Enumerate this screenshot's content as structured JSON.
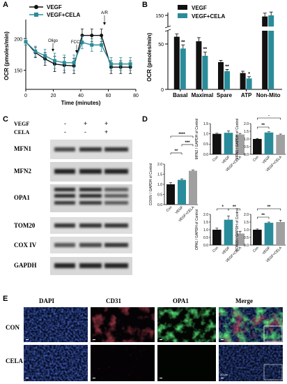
{
  "figure": {
    "panel_labels": [
      "A",
      "B",
      "C",
      "D",
      "E"
    ]
  },
  "panelA": {
    "legend": [
      "VEGF",
      "VEGF+CELA"
    ],
    "ylabel": "OCR (pmoles/min)",
    "xlabel": "Time (minutes)",
    "annotations": [
      "Oligo",
      "FCCP",
      "A/R"
    ],
    "yticks": [
      "150",
      "200"
    ],
    "xticks": [
      "0",
      "20",
      "40",
      "60",
      "80"
    ]
  },
  "panelB": {
    "legend": [
      "VEGF",
      "VEGF+CELA"
    ],
    "ylabel": "OCR (pmoles/min)",
    "categories": [
      "Basal",
      "Maximal",
      "Spare",
      "ATP",
      "Non-Mito"
    ],
    "yticks": [
      "0",
      "50",
      "150"
    ],
    "sig": [
      "**",
      "**",
      "**",
      "*"
    ]
  },
  "panelC": {
    "row_labels": [
      "VEGF",
      "CELA"
    ],
    "vegf_signs": [
      "-",
      "+",
      "+"
    ],
    "cela_signs": [
      "-",
      "-",
      "+"
    ],
    "proteins": [
      "MFN1",
      "MFN2",
      "OPA1",
      "TOM20",
      "COX IV",
      "GAPDH"
    ]
  },
  "panelD": {
    "groups": [
      "Con",
      "VEGF",
      "VEGF+CELA"
    ],
    "subplots": [
      {
        "ylabel": "MFN2 / GAPDH of Control",
        "sig": []
      },
      {
        "ylabel": "MFN1 / GAPDH of Control",
        "sig": [
          "*",
          "**"
        ]
      },
      {
        "ylabel": "COXIV / GAPDH of Control",
        "sig": [
          "****",
          "***",
          "**"
        ]
      },
      {
        "ylabel": "OPA1 / GAPDH of Control",
        "sig": [
          "*",
          "**"
        ]
      },
      {
        "ylabel": "TOM20 / GAPDH of Control",
        "sig": [
          "**",
          "**"
        ]
      }
    ],
    "ytick_labels": [
      "0.0",
      "0.5",
      "1.0",
      "1.5",
      "2.0"
    ]
  },
  "panelE": {
    "columns": [
      "DAPI",
      "CD31",
      "OPA1",
      "Merge"
    ],
    "rows": [
      "CON",
      "CELA"
    ],
    "scale_label": "20 μm"
  },
  "chart_data": [
    {
      "type": "line",
      "title": "",
      "xlabel": "Time (minutes)",
      "ylabel": "OCR (pmoles/min)",
      "xlim": [
        0,
        80
      ],
      "ylim": [
        120,
        230
      ],
      "legend_position": "top-left",
      "x": [
        0,
        7,
        14,
        21,
        28,
        35,
        41,
        48,
        55,
        62,
        69,
        76
      ],
      "series": [
        {
          "name": "VEGF",
          "color": "#111111",
          "values": [
            195,
            178,
            168,
            160,
            158,
            157,
            205,
            205,
            205,
            155,
            155,
            155
          ],
          "errors": [
            5,
            8,
            10,
            12,
            12,
            12,
            10,
            10,
            10,
            10,
            10,
            10
          ]
        },
        {
          "name": "VEGF+CELA",
          "color": "#2a8c9a",
          "values": [
            195,
            180,
            173,
            165,
            162,
            162,
            194,
            190,
            190,
            160,
            160,
            160
          ],
          "errors": [
            5,
            8,
            10,
            12,
            12,
            12,
            10,
            10,
            10,
            10,
            10,
            10
          ]
        }
      ]
    },
    {
      "type": "bar",
      "title": "",
      "xlabel": "",
      "ylabel": "OCR (pmoles/min)",
      "categories": [
        "Basal",
        "Maximal",
        "Spare",
        "ATP",
        "Non-Mito"
      ],
      "ylim": [
        0,
        160
      ],
      "axis_break": true,
      "legend_position": "top-left",
      "series": [
        {
          "name": "VEGF",
          "color": "#111111",
          "values": [
            58,
            53,
            30,
            18,
            148
          ],
          "errors": [
            3,
            4,
            2,
            2,
            6
          ]
        },
        {
          "name": "VEGF+CELA",
          "color": "#2a8c9a",
          "values": [
            45,
            37,
            20,
            12,
            150
          ],
          "errors": [
            4,
            4,
            2,
            2,
            6
          ]
        }
      ]
    },
    {
      "type": "bar",
      "title": "",
      "ylabel": "MFN2 / GAPDH of Control",
      "categories": [
        "Con",
        "VEGF",
        "VEGF+CELA"
      ],
      "ylim": [
        0,
        1.5
      ],
      "colors": [
        "#111111",
        "#2a8c9a",
        "#a0a0a0"
      ],
      "values": [
        1.0,
        1.05,
        0.97
      ],
      "errors": [
        0.03,
        0.1,
        0.05
      ]
    },
    {
      "type": "bar",
      "title": "",
      "ylabel": "MFN1 / GAPDH of Control",
      "categories": [
        "Con",
        "VEGF",
        "VEGF+CELA"
      ],
      "ylim": [
        0,
        2.0
      ],
      "colors": [
        "#111111",
        "#2a8c9a",
        "#a0a0a0"
      ],
      "values": [
        1.0,
        1.42,
        1.27
      ],
      "errors": [
        0.03,
        0.05,
        0.05
      ]
    },
    {
      "type": "bar",
      "title": "",
      "ylabel": "COXIV / GAPDH of Control",
      "categories": [
        "Con",
        "VEGF",
        "VEGF+CELA"
      ],
      "ylim": [
        0,
        2.0
      ],
      "colors": [
        "#111111",
        "#2a8c9a",
        "#a0a0a0"
      ],
      "values": [
        1.0,
        1.22,
        1.67
      ],
      "errors": [
        0.08,
        0.05,
        0.03
      ]
    },
    {
      "type": "bar",
      "title": "",
      "ylabel": "OPA1 / GAPDH of Control",
      "categories": [
        "Con",
        "VEGF",
        "VEGF+CELA"
      ],
      "ylim": [
        0,
        2.0
      ],
      "colors": [
        "#111111",
        "#2a8c9a",
        "#a0a0a0"
      ],
      "values": [
        1.0,
        1.65,
        0.75
      ],
      "errors": [
        0.1,
        0.25,
        0.15
      ]
    },
    {
      "type": "bar",
      "title": "",
      "ylabel": "TOM20 / GAPDH of Control",
      "categories": [
        "Con",
        "VEGF",
        "VEGF+CELA"
      ],
      "ylim": [
        0,
        2.0
      ],
      "colors": [
        "#111111",
        "#2a8c9a",
        "#a0a0a0"
      ],
      "values": [
        1.0,
        1.45,
        1.5
      ],
      "errors": [
        0.05,
        0.05,
        0.12
      ]
    }
  ]
}
